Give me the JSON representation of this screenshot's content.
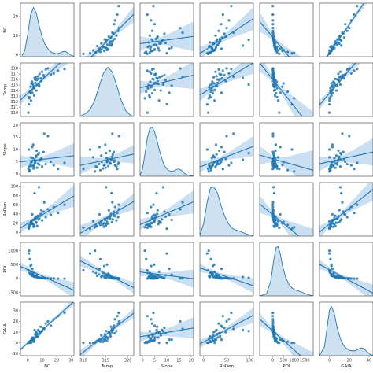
{
  "chart_data": {
    "type": "pairplot",
    "variables": [
      "BC",
      "Temp",
      "Slope",
      "RoDen",
      "POI",
      "GAIA"
    ],
    "diagonal": "kde",
    "off_diagonal": "scatter with linear regression fit and confidence band",
    "grid": false,
    "colors": {
      "points": "#1f77b4",
      "band": "#9ec5e5",
      "kde_fill": "#aecde8"
    },
    "ranges": {
      "BC": [
        -5,
        32
      ],
      "Temp": [
        309.3,
        321.3
      ],
      "Slope": [
        -1,
        21
      ],
      "RoDen": [
        -8,
        108
      ],
      "POI": [
        -620,
        1900
      ],
      "GAIA": [
        -10,
        44
      ]
    },
    "y_ranges": {
      "BC": [
        -1,
        27
      ],
      "Temp": [
        309.3,
        319
      ],
      "Slope": [
        -1,
        21
      ],
      "RoDen": [
        -8,
        108
      ],
      "POI": [
        -620,
        1300
      ],
      "GAIA": [
        -12,
        38
      ]
    },
    "ticks": {
      "BC": [
        0,
        10,
        20,
        30
      ],
      "Temp": [
        310,
        315,
        320
      ],
      "Slope": [
        0,
        5,
        10,
        15,
        20
      ],
      "RoDen": [
        0,
        50,
        100
      ],
      "POI": [
        0,
        500,
        1000,
        1500
      ],
      "GAIA": [
        0,
        20,
        40
      ]
    },
    "y_ticks": {
      "BC": [
        0,
        10,
        20
      ],
      "Temp": [
        310,
        311,
        312,
        313,
        314,
        315,
        316,
        317,
        318
      ],
      "Slope": [
        0,
        5,
        10,
        15,
        20
      ],
      "RoDen": [
        0,
        20,
        40,
        60,
        80,
        100
      ],
      "POI": [
        -500,
        0,
        500,
        1000
      ],
      "GAIA": [
        -10,
        0,
        10,
        20,
        30
      ]
    },
    "x_tick_labels": {
      "BC": [
        "0",
        "10",
        "20",
        "30"
      ],
      "Temp": [
        "310",
        "315",
        "320"
      ],
      "Slope": [
        "0",
        "5",
        "10",
        "15",
        "20"
      ],
      "RoDen": [
        "0",
        "50",
        "100"
      ],
      "POI": [
        "0",
        "500",
        "1000",
        "1500"
      ],
      "GAIA": [
        "0",
        "20",
        "40"
      ]
    },
    "y_tick_labels": {
      "BC": [
        "0",
        "10",
        "20"
      ],
      "Temp": [
        "310",
        "311",
        "312",
        "313",
        "314",
        "315",
        "316",
        "317",
        "318"
      ],
      "Slope": [
        "0",
        "5",
        "10",
        "15",
        "20"
      ],
      "RoDen": [
        "0",
        "20",
        "40",
        "60",
        "80",
        "100"
      ],
      "POI": [
        "-500",
        "0",
        "500",
        "1000"
      ],
      "GAIA": [
        "-10",
        "0",
        "10",
        "20",
        "30"
      ]
    },
    "axis_labels": {
      "BC": "BC",
      "Temp": "Temp",
      "Slope": "Slope",
      "RoDen": "RoDen",
      "POI": "POI",
      "GAIA": "GAIA"
    },
    "observations": {
      "BC": [
        0.5,
        1.2,
        2.0,
        2.8,
        3.5,
        4.1,
        5.0,
        5.8,
        6.5,
        7.3,
        8.2,
        9.0,
        10.0,
        11.0,
        12.5,
        14.0,
        16.0,
        18.0,
        21.0,
        25.5,
        0.8,
        1.5,
        2.3,
        3.0,
        3.8,
        4.5,
        5.3,
        6.0,
        7.0,
        8.0,
        9.5,
        11.5,
        1.0,
        2.5,
        4.0,
        6.2,
        3.2,
        4.8,
        2.0,
        7.8
      ],
      "Temp": [
        310.0,
        312.8,
        313.5,
        314.1,
        315.2,
        314.6,
        316.0,
        316.4,
        315.0,
        316.6,
        317.0,
        316.2,
        317.4,
        316.8,
        317.8,
        318.0,
        316.9,
        317.1,
        317.6,
        317.9,
        311.5,
        313.8,
        312.2,
        315.6,
        314.9,
        313.1,
        315.4,
        314.0,
        316.1,
        314.8,
        315.7,
        316.5,
        312.6,
        315.3,
        314.4,
        315.9,
        313.6,
        316.3,
        314.7,
        315.1
      ],
      "Slope": [
        2.0,
        3.0,
        4.0,
        5.0,
        6.5,
        3.5,
        4.5,
        7.0,
        2.5,
        8.0,
        5.5,
        6.0,
        3.0,
        9.0,
        4.0,
        15.5,
        5.0,
        3.5,
        2.0,
        4.5,
        10.0,
        1.5,
        6.8,
        3.2,
        12.0,
        2.8,
        5.2,
        7.5,
        4.2,
        3.8,
        6.2,
        16.5,
        1.0,
        4.8,
        2.2,
        9.5,
        11.0,
        5.8,
        3.6,
        8.5
      ],
      "RoDen": [
        10,
        15,
        20,
        25,
        18,
        12,
        30,
        22,
        14,
        28,
        35,
        40,
        26,
        45,
        33,
        50,
        38,
        55,
        42,
        60,
        8,
        16,
        24,
        19,
        27,
        13,
        31,
        21,
        36,
        29,
        48,
        65,
        11,
        23,
        17,
        34,
        39,
        85,
        20,
        98
      ],
      "POI": [
        300,
        200,
        150,
        100,
        120,
        80,
        90,
        60,
        50,
        40,
        30,
        20,
        25,
        15,
        10,
        10,
        5,
        5,
        0,
        0,
        900,
        700,
        250,
        180,
        140,
        100,
        80,
        60,
        40,
        30,
        20,
        10,
        1000,
        500,
        200,
        120,
        350,
        60,
        450,
        30
      ],
      "GAIA": [
        0,
        1,
        2,
        3,
        5,
        4,
        8,
        10,
        6,
        12,
        9,
        15,
        11,
        14,
        18,
        20,
        16,
        22,
        25,
        28,
        0,
        1,
        0,
        4,
        3,
        2,
        5,
        7,
        6,
        8,
        10,
        13,
        0,
        2,
        1,
        9,
        3,
        12,
        2,
        11
      ]
    },
    "kde_density": {
      "BC": {
        "x": [
          -4,
          -2,
          0,
          2,
          4,
          6,
          8,
          10,
          12,
          14,
          16,
          18,
          20,
          22,
          24,
          26,
          28,
          30,
          32
        ],
        "y": [
          0.02,
          0.12,
          0.45,
          0.85,
          1.0,
          0.88,
          0.62,
          0.4,
          0.25,
          0.16,
          0.1,
          0.07,
          0.06,
          0.07,
          0.1,
          0.11,
          0.07,
          0.03,
          0.01
        ]
      },
      "Temp": {
        "x": [
          309.5,
          310.5,
          311.5,
          312.5,
          313.5,
          314.5,
          315.5,
          316.5,
          317.5,
          318.5,
          319.5,
          320.5,
          321
        ],
        "y": [
          0.02,
          0.06,
          0.14,
          0.32,
          0.6,
          0.88,
          1.0,
          0.9,
          0.62,
          0.32,
          0.12,
          0.03,
          0.01
        ]
      },
      "Slope": {
        "x": [
          -1,
          0,
          1,
          2,
          3,
          4,
          5,
          6,
          7,
          8,
          9,
          10,
          11,
          12,
          13,
          14,
          15,
          16,
          17,
          18,
          19,
          20,
          21
        ],
        "y": [
          0.02,
          0.15,
          0.45,
          0.78,
          0.97,
          1.0,
          0.9,
          0.72,
          0.52,
          0.35,
          0.22,
          0.15,
          0.11,
          0.1,
          0.11,
          0.14,
          0.15,
          0.12,
          0.07,
          0.04,
          0.02,
          0.01,
          0.0
        ]
      },
      "RoDen": {
        "x": [
          -8,
          0,
          8,
          15,
          22,
          30,
          38,
          46,
          54,
          62,
          70,
          78,
          86,
          94,
          102,
          108
        ],
        "y": [
          0.02,
          0.25,
          0.7,
          0.98,
          1.0,
          0.88,
          0.62,
          0.4,
          0.25,
          0.16,
          0.12,
          0.1,
          0.07,
          0.04,
          0.02,
          0.01
        ]
      },
      "POI": {
        "x": [
          -620,
          -300,
          -100,
          50,
          150,
          250,
          350,
          450,
          600,
          750,
          900,
          1050,
          1200,
          1350,
          1500,
          1700,
          1900
        ],
        "y": [
          0.0,
          0.04,
          0.3,
          0.75,
          0.98,
          1.0,
          0.85,
          0.62,
          0.38,
          0.24,
          0.16,
          0.12,
          0.1,
          0.08,
          0.05,
          0.02,
          0.0
        ]
      },
      "GAIA": {
        "x": [
          -10,
          -5,
          -2,
          0,
          2,
          5,
          8,
          11,
          14,
          17,
          20,
          23,
          26,
          29,
          32,
          35,
          38,
          41,
          44
        ],
        "y": [
          0.01,
          0.18,
          0.62,
          0.92,
          1.0,
          0.85,
          0.55,
          0.35,
          0.22,
          0.15,
          0.11,
          0.1,
          0.1,
          0.13,
          0.16,
          0.14,
          0.08,
          0.03,
          0.01
        ]
      }
    }
  }
}
